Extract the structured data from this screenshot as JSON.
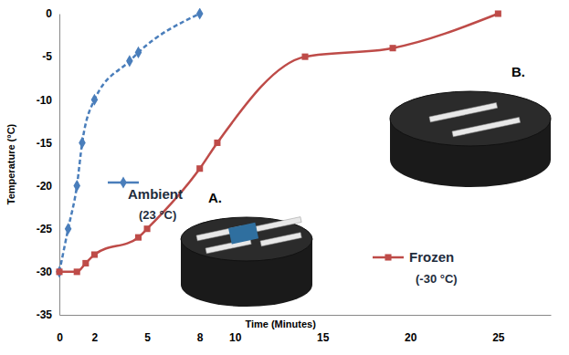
{
  "chart_data": {
    "type": "line",
    "x_label": "Time (Minutes)",
    "y_label": "Temperature (°C)",
    "xlim": [
      0,
      28
    ],
    "xticks": [
      0,
      2,
      5,
      8,
      10,
      15,
      20,
      25
    ],
    "ylim": [
      -35,
      0
    ],
    "yticks": [
      0,
      -5,
      -10,
      -15,
      -20,
      -25,
      -30,
      -35
    ],
    "grid": false,
    "series": [
      {
        "name": "Ambient",
        "color": "#4a7ebb",
        "marker": "diamond",
        "line_style": "dashed",
        "x": [
          0,
          0.5,
          1,
          1.3,
          2,
          4,
          4.5,
          8
        ],
        "values": [
          -30,
          -25,
          -20,
          -15,
          -10,
          -5.5,
          -4.5,
          0
        ]
      },
      {
        "name": "Frozen",
        "color": "#be4b48",
        "marker": "square",
        "line_style": "solid",
        "x": [
          0,
          1,
          1.5,
          2,
          4.5,
          5,
          8,
          9,
          14,
          19,
          25
        ],
        "values": [
          -30,
          -30,
          -29,
          -28,
          -26,
          -25,
          -18,
          -15,
          -5,
          -4,
          0
        ]
      }
    ],
    "annotations": [
      "(23 °C)",
      "(-30 °C)",
      "A.",
      "B."
    ]
  }
}
